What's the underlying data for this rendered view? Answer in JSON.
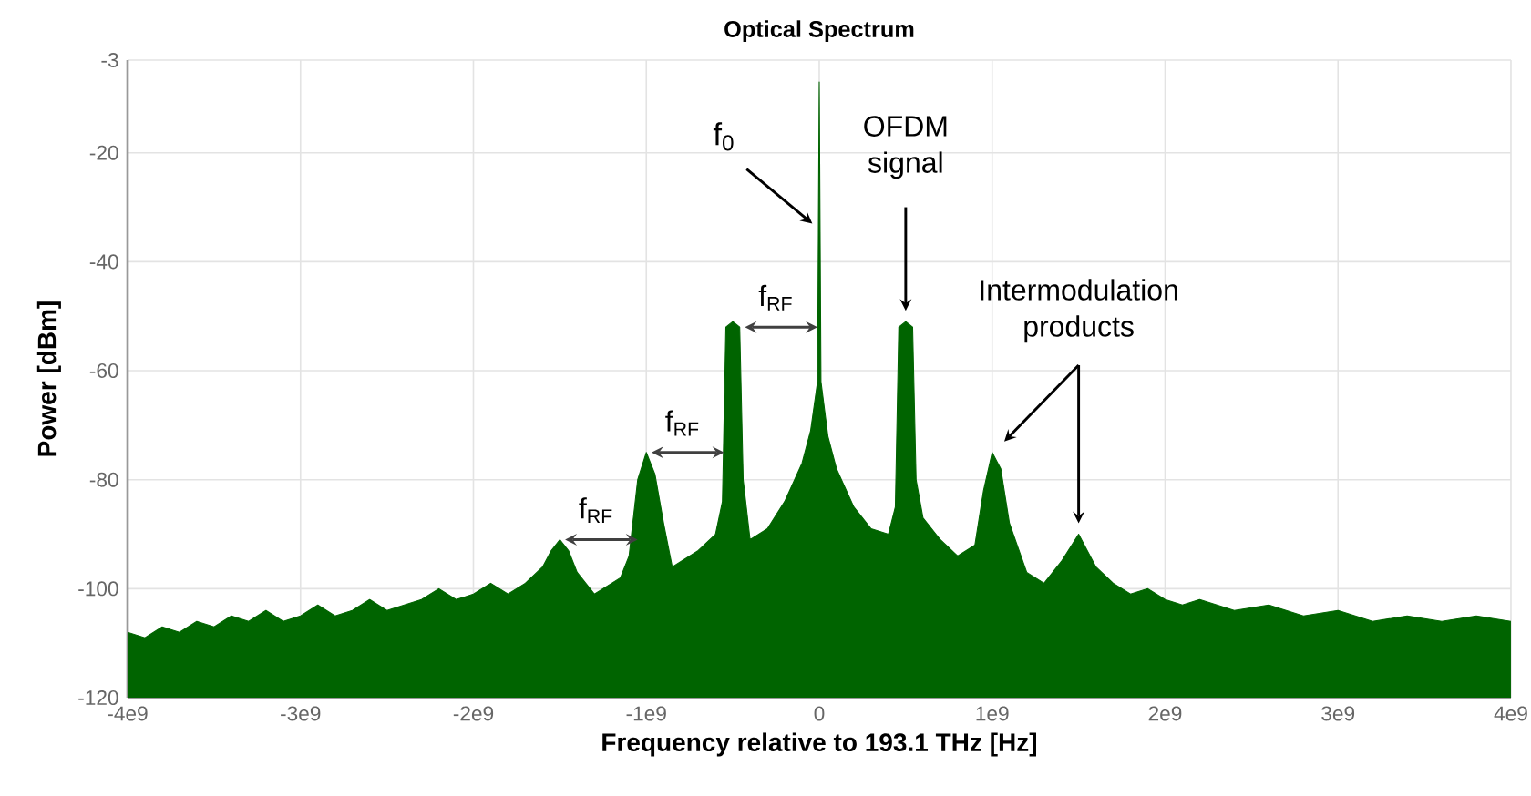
{
  "chart_data": {
    "type": "area",
    "title": "Optical Spectrum",
    "xlabel": "Frequency relative to 193.1 THz [Hz]",
    "ylabel": "Power [dBm]",
    "xlim": [
      -4000000000.0,
      4000000000.0
    ],
    "xticks": [
      {
        "value": -4000000000.0,
        "label": "-4e9"
      },
      {
        "value": -3000000000.0,
        "label": "-3e9"
      },
      {
        "value": -2000000000.0,
        "label": "-2e9"
      },
      {
        "value": -1000000000.0,
        "label": "-1e9"
      },
      {
        "value": 0,
        "label": "0"
      },
      {
        "value": 1000000000.0,
        "label": "1e9"
      },
      {
        "value": 2000000000.0,
        "label": "2e9"
      },
      {
        "value": 3000000000.0,
        "label": "3e9"
      },
      {
        "value": 4000000000.0,
        "label": "4e9"
      }
    ],
    "ylim": [
      -120,
      -3
    ],
    "yticks": [
      -120,
      -100,
      -80,
      -60,
      -40,
      -20,
      -3
    ],
    "grid": true,
    "color": "#006400",
    "x": [
      -4000000000.0,
      -4000000000.0,
      -3900000000.0,
      -3800000000.0,
      -3700000000.0,
      -3600000000.0,
      -3500000000.0,
      -3400000000.0,
      -3300000000.0,
      -3200000000.0,
      -3100000000.0,
      -3000000000.0,
      -2900000000.0,
      -2800000000.0,
      -2700000000.0,
      -2600000000.0,
      -2500000000.0,
      -2400000000.0,
      -2300000000.0,
      -2200000000.0,
      -2100000000.0,
      -2000000000.0,
      -1900000000.0,
      -1800000000.0,
      -1700000000.0,
      -1600000000.0,
      -1550000000.0,
      -1500000000.0,
      -1450000000.0,
      -1400000000.0,
      -1300000000.0,
      -1200000000.0,
      -1150000000.0,
      -1100000000.0,
      -1050000000.0,
      -1000000000.0,
      -950000000.0,
      -900000000.0,
      -850000000.0,
      -800000000.0,
      -700000000.0,
      -600000000.0,
      -560000000.0,
      -540000000.0,
      -500000000.0,
      -460000000.0,
      -440000000.0,
      -400000000.0,
      -300000000.0,
      -200000000.0,
      -100000000.0,
      -50000000.0,
      -10000000.0,
      0,
      10000000.0,
      50000000.0,
      100000000.0,
      200000000.0,
      300000000.0,
      400000000.0,
      440000000.0,
      460000000.0,
      500000000.0,
      540000000.0,
      560000000.0,
      600000000.0,
      700000000.0,
      800000000.0,
      900000000.0,
      950000000.0,
      1000000000.0,
      1050000000.0,
      1100000000.0,
      1200000000.0,
      1300000000.0,
      1400000000.0,
      1500000000.0,
      1600000000.0,
      1700000000.0,
      1800000000.0,
      1900000000.0,
      2000000000.0,
      2100000000.0,
      2200000000.0,
      2400000000.0,
      2600000000.0,
      2800000000.0,
      3000000000.0,
      3200000000.0,
      3400000000.0,
      3600000000.0,
      3800000000.0,
      4000000000.0,
      4000000000.0
    ],
    "values": [
      -120,
      -108,
      -109,
      -107,
      -108,
      -106,
      -107,
      -105,
      -106,
      -104,
      -106,
      -105,
      -103,
      -105,
      -104,
      -102,
      -104,
      -103,
      -102,
      -100,
      -102,
      -101,
      -99,
      -101,
      -99,
      -96,
      -93,
      -91,
      -93,
      -97,
      -101,
      -99,
      -98,
      -94,
      -80,
      -75,
      -79,
      -88,
      -96,
      -95,
      -93,
      -90,
      -84,
      -52,
      -51,
      -52,
      -80,
      -91,
      -89,
      -84,
      -77,
      -71,
      -62,
      -7,
      -62,
      -72,
      -78,
      -85,
      -89,
      -90,
      -85,
      -52,
      -51,
      -52,
      -80,
      -87,
      -91,
      -94,
      -92,
      -82,
      -75,
      -78,
      -88,
      -97,
      -99,
      -95,
      -90,
      -96,
      -99,
      -101,
      -100,
      -102,
      -103,
      -102,
      -104,
      -103,
      -105,
      -104,
      -106,
      -105,
      -106,
      -105,
      -106,
      -120
    ],
    "annotations": [
      {
        "text": "f$_{0}$",
        "x": 0,
        "y": -33
      },
      {
        "text": "OFDM signal",
        "x": 500000000.0,
        "y": -50
      },
      {
        "text": "f$_{RF}$",
        "x": -460000000.0,
        "y": -52
      },
      {
        "text": "f$_{RF}$",
        "x": -1000000000.0,
        "y": -75
      },
      {
        "text": "f$_{RF}$",
        "x": -1500000000.0,
        "y": -91
      },
      "Intermodulation products"
    ]
  }
}
